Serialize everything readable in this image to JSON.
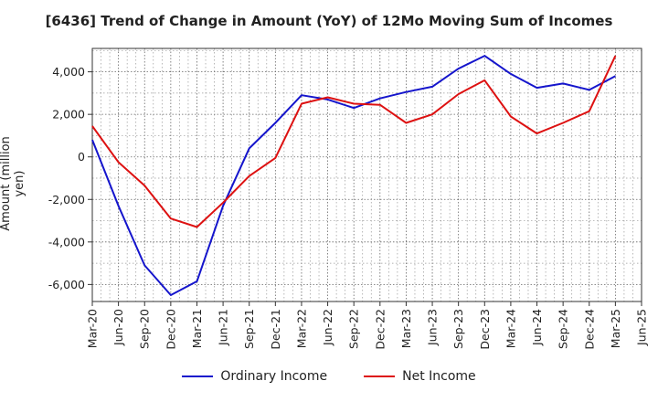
{
  "chart_data": {
    "type": "line",
    "title": "[6436]  Trend of Change in Amount (YoY) of 12Mo Moving Sum of Incomes",
    "ylabel": "Amount (million yen)",
    "xlabel": "",
    "x": [
      "Mar-20",
      "Jun-20",
      "Sep-20",
      "Dec-20",
      "Mar-21",
      "Jun-21",
      "Sep-21",
      "Dec-21",
      "Mar-22",
      "Jun-22",
      "Sep-22",
      "Dec-22",
      "Mar-23",
      "Jun-23",
      "Sep-23",
      "Dec-23",
      "Mar-24",
      "Jun-24",
      "Sep-24",
      "Dec-24",
      "Mar-25",
      "Jun-25"
    ],
    "ylim": [
      -6800,
      5100
    ],
    "yticks": [
      -6000,
      -4000,
      -2000,
      0,
      2000,
      4000
    ],
    "ytick_labels": [
      "-6,000",
      "-4,000",
      "-2,000",
      "0",
      "2,000",
      "4,000"
    ],
    "grid": true,
    "legend_position": "bottom",
    "series": [
      {
        "name": "Ordinary Income",
        "color": "#1515cc",
        "values": [
          800,
          -2300,
          -5100,
          -6500,
          -5850,
          -2300,
          400,
          1600,
          2900,
          2700,
          2300,
          2750,
          3050,
          3300,
          4150,
          4750,
          3900,
          3250,
          3450,
          3150,
          3800,
          null
        ]
      },
      {
        "name": "Net Income",
        "color": "#dd1111",
        "values": [
          1450,
          -250,
          -1350,
          -2900,
          -3300,
          -2150,
          -900,
          -50,
          2500,
          2800,
          2500,
          2450,
          1600,
          2000,
          2950,
          3600,
          1900,
          1100,
          1600,
          2150,
          4750,
          null
        ]
      }
    ]
  }
}
